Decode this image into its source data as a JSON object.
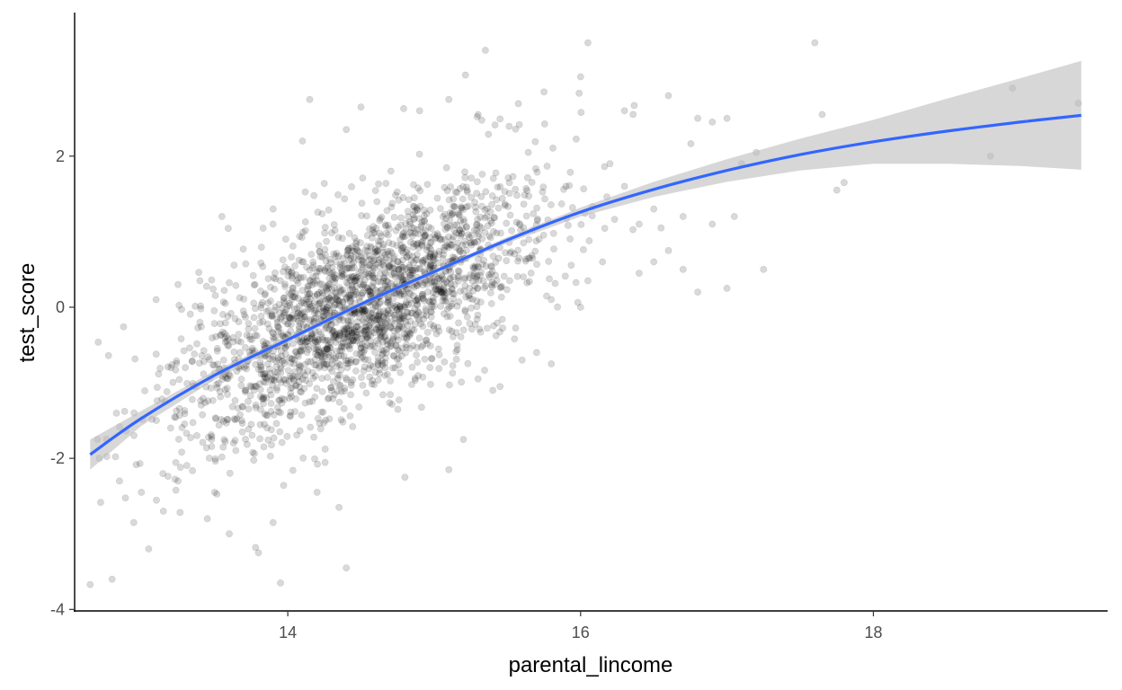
{
  "chart_data": {
    "type": "scatter",
    "xlabel": "parental_lincome",
    "ylabel": "test_score",
    "xlim": [
      12.55,
      19.6
    ],
    "ylim": [
      -4.02,
      3.9
    ],
    "x_ticks": [
      14,
      16,
      18
    ],
    "y_ticks": [
      -4,
      -2,
      0,
      2
    ],
    "x_tick_labels": [
      "14",
      "16",
      "18"
    ],
    "y_tick_labels": [
      "-4",
      "-2",
      "0",
      "2"
    ],
    "grid": false,
    "legend": "none",
    "point_color": "#000000",
    "point_alpha": 0.15,
    "smooth_color": "#3366FF",
    "ribbon_color": "#bdbdbd",
    "smooth_line": {
      "x": [
        12.65,
        13.0,
        13.5,
        14.0,
        14.5,
        15.0,
        15.5,
        16.0,
        16.5,
        17.0,
        17.5,
        18.0,
        18.5,
        19.0,
        19.42
      ],
      "y": [
        -1.95,
        -1.47,
        -0.9,
        -0.43,
        0.04,
        0.47,
        0.89,
        1.26,
        1.56,
        1.81,
        2.02,
        2.19,
        2.33,
        2.45,
        2.54
      ],
      "lower": [
        -2.15,
        -1.57,
        -0.96,
        -0.47,
        0.01,
        0.44,
        0.85,
        1.2,
        1.46,
        1.66,
        1.81,
        1.9,
        1.9,
        1.87,
        1.82
      ],
      "upper": [
        -1.75,
        -1.37,
        -0.84,
        -0.39,
        0.07,
        0.5,
        0.93,
        1.32,
        1.66,
        1.96,
        2.23,
        2.48,
        2.76,
        3.03,
        3.26
      ]
    },
    "points": [
      [
        12.65,
        -3.67
      ],
      [
        12.8,
        -3.6
      ],
      [
        13.05,
        -3.2
      ],
      [
        13.45,
        -2.8
      ],
      [
        13.6,
        -3.0
      ],
      [
        13.78,
        -3.18
      ],
      [
        13.8,
        -3.25
      ],
      [
        13.9,
        -2.85
      ],
      [
        13.95,
        -3.65
      ],
      [
        14.4,
        -3.45
      ],
      [
        13.0,
        -2.45
      ],
      [
        13.15,
        -2.7
      ],
      [
        13.25,
        -2.3
      ],
      [
        13.5,
        -2.45
      ],
      [
        14.2,
        -2.45
      ],
      [
        14.35,
        -2.65
      ],
      [
        14.8,
        -2.25
      ],
      [
        15.1,
        -2.15
      ],
      [
        15.2,
        -1.75
      ],
      [
        13.1,
        0.1
      ],
      [
        13.25,
        0.3
      ],
      [
        13.4,
        -0.2
      ],
      [
        13.55,
        1.2
      ],
      [
        13.9,
        1.3
      ],
      [
        14.1,
        2.2
      ],
      [
        14.15,
        2.75
      ],
      [
        14.4,
        2.35
      ],
      [
        14.5,
        2.65
      ],
      [
        14.9,
        2.6
      ],
      [
        15.1,
        2.75
      ],
      [
        15.3,
        2.55
      ],
      [
        15.35,
        3.4
      ],
      [
        15.75,
        2.85
      ],
      [
        16.0,
        3.05
      ],
      [
        16.05,
        3.5
      ],
      [
        16.3,
        2.6
      ],
      [
        16.6,
        2.8
      ],
      [
        16.8,
        2.5
      ],
      [
        16.9,
        2.45
      ],
      [
        17.0,
        2.5
      ],
      [
        17.2,
        2.05
      ],
      [
        17.6,
        3.5
      ],
      [
        17.65,
        2.55
      ],
      [
        17.75,
        1.55
      ],
      [
        17.8,
        1.65
      ],
      [
        18.8,
        2.0
      ],
      [
        18.95,
        2.9
      ],
      [
        19.4,
        2.7
      ],
      [
        16.2,
        1.9
      ],
      [
        16.3,
        1.6
      ],
      [
        16.5,
        1.3
      ],
      [
        16.6,
        0.75
      ],
      [
        16.7,
        0.5
      ],
      [
        16.9,
        1.1
      ],
      [
        17.05,
        1.2
      ],
      [
        17.25,
        0.5
      ],
      [
        17.0,
        0.25
      ],
      [
        16.8,
        0.2
      ],
      [
        16.5,
        0.6
      ],
      [
        16.4,
        0.45
      ],
      [
        16.15,
        0.6
      ],
      [
        16.05,
        0.35
      ],
      [
        15.8,
        0.1
      ],
      [
        15.7,
        -0.6
      ],
      [
        15.6,
        -0.7
      ],
      [
        15.45,
        -1.05
      ],
      [
        15.4,
        -1.1
      ],
      [
        15.3,
        -0.95
      ],
      [
        15.8,
        -0.75
      ],
      [
        16.0,
        0.0
      ],
      [
        15.9,
        1.6
      ],
      [
        16.4,
        1.1
      ],
      [
        16.7,
        1.2
      ],
      [
        16.55,
        1.05
      ],
      [
        17.1,
        1.9
      ],
      [
        12.7,
        -1.75
      ],
      [
        12.85,
        -2.3
      ],
      [
        12.95,
        -1.4
      ],
      [
        13.2,
        -1.6
      ],
      [
        13.3,
        -0.8
      ]
    ],
    "cloud": {
      "count": 2300,
      "x_mean": 14.5,
      "x_sd": 0.6,
      "slope": 0.9,
      "noise_sd": 0.62
    }
  }
}
